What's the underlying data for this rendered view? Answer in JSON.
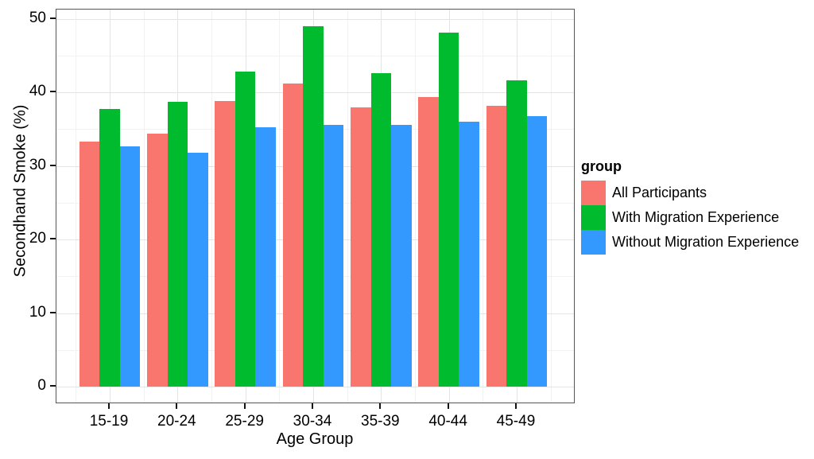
{
  "chart_data": {
    "type": "bar",
    "title": "",
    "xlabel": "Age Group",
    "ylabel": "Secondhand Smoke (%)",
    "ylim": [
      0,
      50
    ],
    "y_major_ticks": [
      0,
      10,
      20,
      30,
      40,
      50
    ],
    "y_minor_ticks": [
      5,
      15,
      25,
      35,
      45
    ],
    "grid": "on",
    "legend_title": "group",
    "legend_position": "right",
    "categories": [
      "15-19",
      "20-24",
      "25-29",
      "30-34",
      "35-39",
      "40-44",
      "45-49"
    ],
    "series": [
      {
        "name": "All Participants",
        "color": "#F8766D",
        "values": [
          33.3,
          34.4,
          38.8,
          41.2,
          38.0,
          39.4,
          38.2
        ]
      },
      {
        "name": "With Migration Experience",
        "color": "#00BB2D",
        "values": [
          37.7,
          38.7,
          42.8,
          49.0,
          42.6,
          48.1,
          41.6
        ]
      },
      {
        "name": "Without Migration Experience",
        "color": "#3399FF",
        "values": [
          32.7,
          31.8,
          35.2,
          35.6,
          35.6,
          36.0,
          36.8
        ]
      }
    ],
    "colors": {
      "panel_border": "#565656",
      "grid_major": "#e4e4e4",
      "grid_minor": "#f2f2f2",
      "tick": "#141414",
      "text": "#000000"
    }
  }
}
